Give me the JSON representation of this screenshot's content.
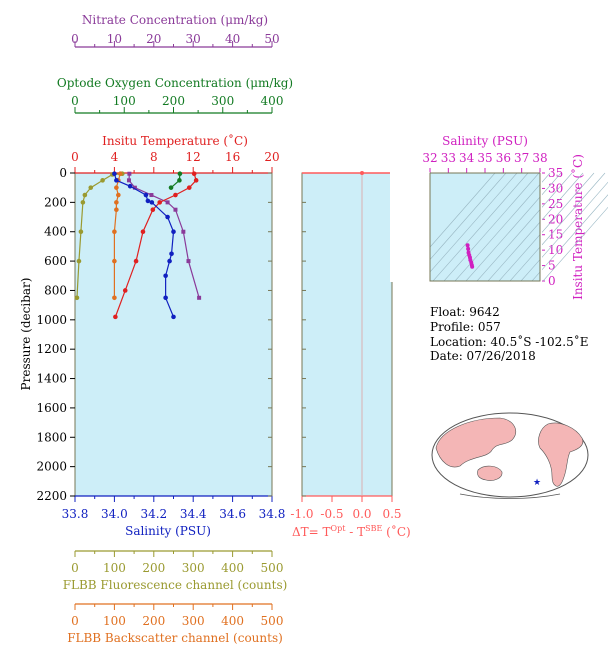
{
  "colors": {
    "plot_bg": "#cdeef8",
    "nitrate": "#8a3a99",
    "oxygen": "#127a22",
    "temperature": "#e02020",
    "salinity": "#1020c0",
    "fluorescence": "#9a9a30",
    "backscatter": "#e07020",
    "delta_axis": "#ff5a5a",
    "ts_axis": "#d020c0",
    "frame": "#777755"
  },
  "axes": {
    "nitrate": {
      "title": "Nitrate Concentration (μm/kg)",
      "ticks": [
        "0",
        "10",
        "20",
        "30",
        "40",
        "50"
      ],
      "range": [
        0,
        50
      ]
    },
    "oxygen": {
      "title": "Optode Oxygen Concentration (μm/kg)",
      "ticks": [
        "0",
        "100",
        "200",
        "300",
        "400"
      ],
      "range": [
        0,
        400
      ]
    },
    "temperature": {
      "title": "Insitu Temperature (˚C)",
      "ticks": [
        "0",
        "4",
        "8",
        "12",
        "16",
        "20"
      ],
      "range": [
        0,
        20
      ]
    },
    "pressure": {
      "title": "Pressure (decibar)",
      "ticks": [
        "0",
        "200",
        "400",
        "600",
        "800",
        "1000",
        "1200",
        "1400",
        "1600",
        "1800",
        "2000",
        "2200"
      ],
      "range": [
        0,
        2200
      ]
    },
    "salinity": {
      "title": "Salinity (PSU)",
      "ticks": [
        "33.8",
        "34.0",
        "34.2",
        "34.4",
        "34.6",
        "34.8"
      ],
      "range": [
        33.8,
        34.8
      ]
    },
    "fluorescence": {
      "title": "FLBB Fluorescence channel (counts)",
      "ticks": [
        "0",
        "100",
        "200",
        "300",
        "400",
        "500"
      ],
      "range": [
        0,
        500
      ]
    },
    "backscatter": {
      "title": "FLBB Backscatter channel (counts)",
      "ticks": [
        "0",
        "100",
        "200",
        "300",
        "400",
        "500"
      ],
      "range": [
        0,
        500
      ]
    },
    "delta_t": {
      "title_main": "ΔT= T",
      "sup1": "Opt",
      "mid": " - T",
      "sup2": "SBE",
      "unit": " (˚C)",
      "ticks": [
        "-1.0",
        "-0.5",
        "0.0",
        "0.5"
      ],
      "range": [
        -1.0,
        0.5
      ]
    },
    "ts_salinity": {
      "title": "Salinity (PSU)",
      "ticks": [
        "32",
        "33",
        "34",
        "35",
        "36",
        "37",
        "38"
      ],
      "range": [
        32,
        38
      ]
    },
    "ts_temperature": {
      "title": "Insitu Temperature (˚C)",
      "ticks": [
        "0",
        "5",
        "10",
        "15",
        "20",
        "25",
        "30",
        "35"
      ],
      "range": [
        0,
        35
      ]
    }
  },
  "info": {
    "float": "Float:  9642",
    "profile": "Profile:  057",
    "location": "Location:  40.5˚S  -102.5˚E",
    "date": "Date:  07/26/2018"
  },
  "chart_data": {
    "type": "line",
    "y_axis": "Pressure (decibar)",
    "series": [
      {
        "name": "Insitu Temperature",
        "points": [
          [
            12.1,
            5
          ],
          [
            12.3,
            50
          ],
          [
            11.6,
            100
          ],
          [
            10.2,
            150
          ],
          [
            8.6,
            200
          ],
          [
            7.9,
            250
          ],
          [
            6.9,
            400
          ],
          [
            6.2,
            600
          ],
          [
            5.1,
            800
          ],
          [
            4.1,
            980
          ]
        ]
      },
      {
        "name": "Salinity",
        "points": [
          [
            34.0,
            5
          ],
          [
            34.01,
            50
          ],
          [
            34.08,
            90
          ],
          [
            34.16,
            150
          ],
          [
            34.17,
            190
          ],
          [
            34.19,
            200
          ],
          [
            34.27,
            300
          ],
          [
            34.3,
            400
          ],
          [
            34.29,
            550
          ],
          [
            34.28,
            600
          ],
          [
            34.26,
            700
          ],
          [
            34.26,
            850
          ],
          [
            34.3,
            980
          ]
        ]
      },
      {
        "name": "Nitrate",
        "points": [
          [
            13.8,
            5
          ],
          [
            13.7,
            50
          ],
          [
            15.2,
            100
          ],
          [
            19.4,
            150
          ],
          [
            23.5,
            200
          ],
          [
            25.5,
            250
          ],
          [
            27.5,
            400
          ],
          [
            28.8,
            600
          ],
          [
            31.5,
            850
          ]
        ]
      },
      {
        "name": "Optode Oxygen",
        "points": [
          [
            213,
            5
          ],
          [
            212,
            50
          ],
          [
            195,
            100
          ]
        ]
      },
      {
        "name": "FLBB Fluorescence",
        "points": [
          [
            120,
            5
          ],
          [
            95,
            10
          ],
          [
            70,
            50
          ],
          [
            40,
            100
          ],
          [
            25,
            150
          ],
          [
            20,
            200
          ],
          [
            15,
            400
          ],
          [
            10,
            600
          ],
          [
            5,
            850
          ]
        ]
      },
      {
        "name": "FLBB Backscatter",
        "points": [
          [
            115,
            5
          ],
          [
            110,
            50
          ],
          [
            105,
            100
          ],
          [
            110,
            150
          ],
          [
            105,
            200
          ],
          [
            105,
            250
          ],
          [
            100,
            400
          ],
          [
            100,
            600
          ],
          [
            100,
            850
          ]
        ]
      },
      {
        "name": "Delta T",
        "points": [
          [
            0.0,
            0
          ]
        ]
      }
    ],
    "ts_points": [
      [
        34.05,
        11.6
      ],
      [
        34.08,
        10.4
      ],
      [
        34.1,
        9.2
      ],
      [
        34.14,
        8.4
      ],
      [
        34.18,
        7.6
      ],
      [
        34.2,
        6.8
      ],
      [
        34.25,
        6.0
      ],
      [
        34.28,
        5.2
      ],
      [
        34.3,
        4.6
      ]
    ]
  }
}
